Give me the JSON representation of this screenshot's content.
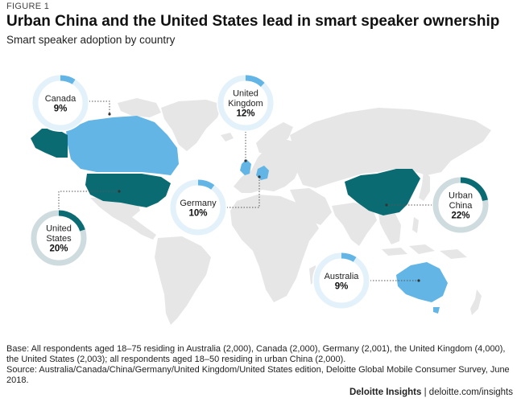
{
  "figure_label": "FIGURE 1",
  "footer": {
    "base_note": "Base: All respondents aged 18–75 residing in Australia (2,000), Canada (2,000), Germany (2,001), the United Kingdom (4,000), the United States (2,003); all respondents aged 18–50 residing in urban China (2,000).",
    "source_note": "Source: Australia/Canada/China/Germany/United Kingdom/United States edition, Deloitte Global Mobile Consumer Survey, June 2018.",
    "brand": "Deloitte Insights",
    "separator": "|",
    "website": "deloitte.com/insights"
  },
  "colors": {
    "land": "#e6e6e6",
    "highlight_light": "#62b5e5",
    "highlight_dark": "#0b6b72",
    "ring_light_track": "#e3f1fb",
    "ring_light_fill": "#62b5e5",
    "ring_dark_track": "#cfdcdf",
    "ring_dark_fill": "#0b6b72",
    "leader": "#555555"
  },
  "chart_data": {
    "type": "map",
    "title": "Urban China and the United States lead in smart speaker ownership",
    "subtitle": "Smart speaker adoption by country",
    "unit": "%",
    "series": [
      {
        "country": "Canada",
        "label_lines": [
          "Canada"
        ],
        "value": 9,
        "value_label": "9%",
        "style": "light"
      },
      {
        "country": "United Kingdom",
        "label_lines": [
          "United",
          "Kingdom"
        ],
        "value": 12,
        "value_label": "12%",
        "style": "light"
      },
      {
        "country": "Germany",
        "label_lines": [
          "Germany"
        ],
        "value": 10,
        "value_label": "10%",
        "style": "light"
      },
      {
        "country": "United States",
        "label_lines": [
          "United",
          "States"
        ],
        "value": 20,
        "value_label": "20%",
        "style": "dark"
      },
      {
        "country": "Urban China",
        "label_lines": [
          "Urban",
          "China"
        ],
        "value": 22,
        "value_label": "22%",
        "style": "dark"
      },
      {
        "country": "Australia",
        "label_lines": [
          "Australia"
        ],
        "value": 9,
        "value_label": "9%",
        "style": "light"
      }
    ]
  }
}
